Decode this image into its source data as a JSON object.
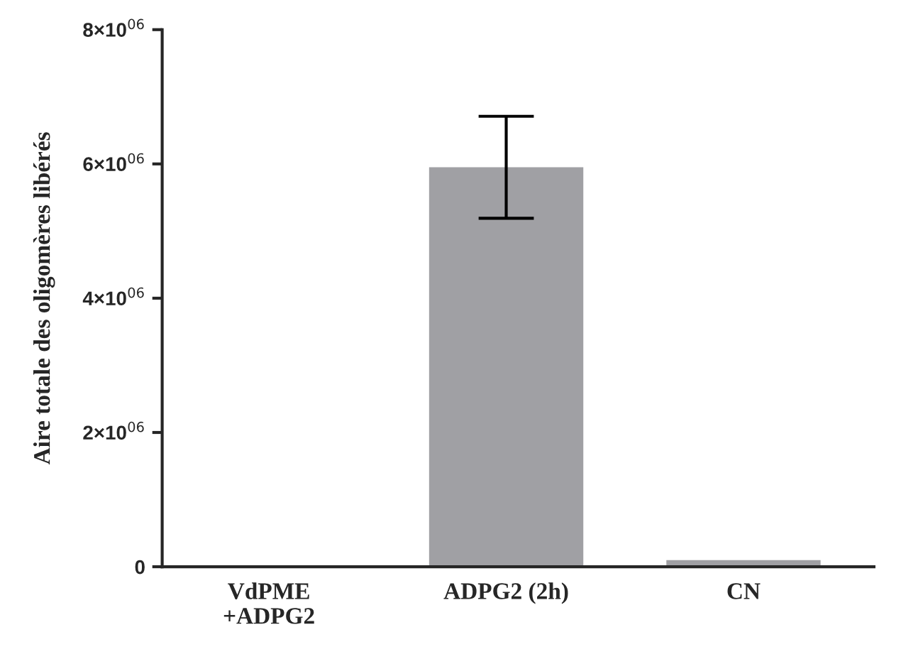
{
  "chart_data": {
    "type": "bar",
    "categories": [
      "VdPME\n+ADPG2",
      "ADPG2 (2h)",
      "CN"
    ],
    "values": [
      0,
      5950000,
      100000
    ],
    "errors": [
      null,
      760000,
      null
    ],
    "color": "#a0a0a4",
    "ylabel": "Aire totale des oligomères libérés",
    "ylim": [
      0,
      8000000
    ],
    "yticks": [
      {
        "value": 0,
        "label": "0"
      },
      {
        "value": 2000000,
        "label": "2×10$^{06}$"
      },
      {
        "value": 4000000,
        "label": "4×10$^{06}$"
      },
      {
        "value": 6000000,
        "label": "6×10$^{06}$"
      },
      {
        "value": 8000000,
        "label": "8×10$^{06}$"
      }
    ],
    "grid": false,
    "legend": false
  }
}
